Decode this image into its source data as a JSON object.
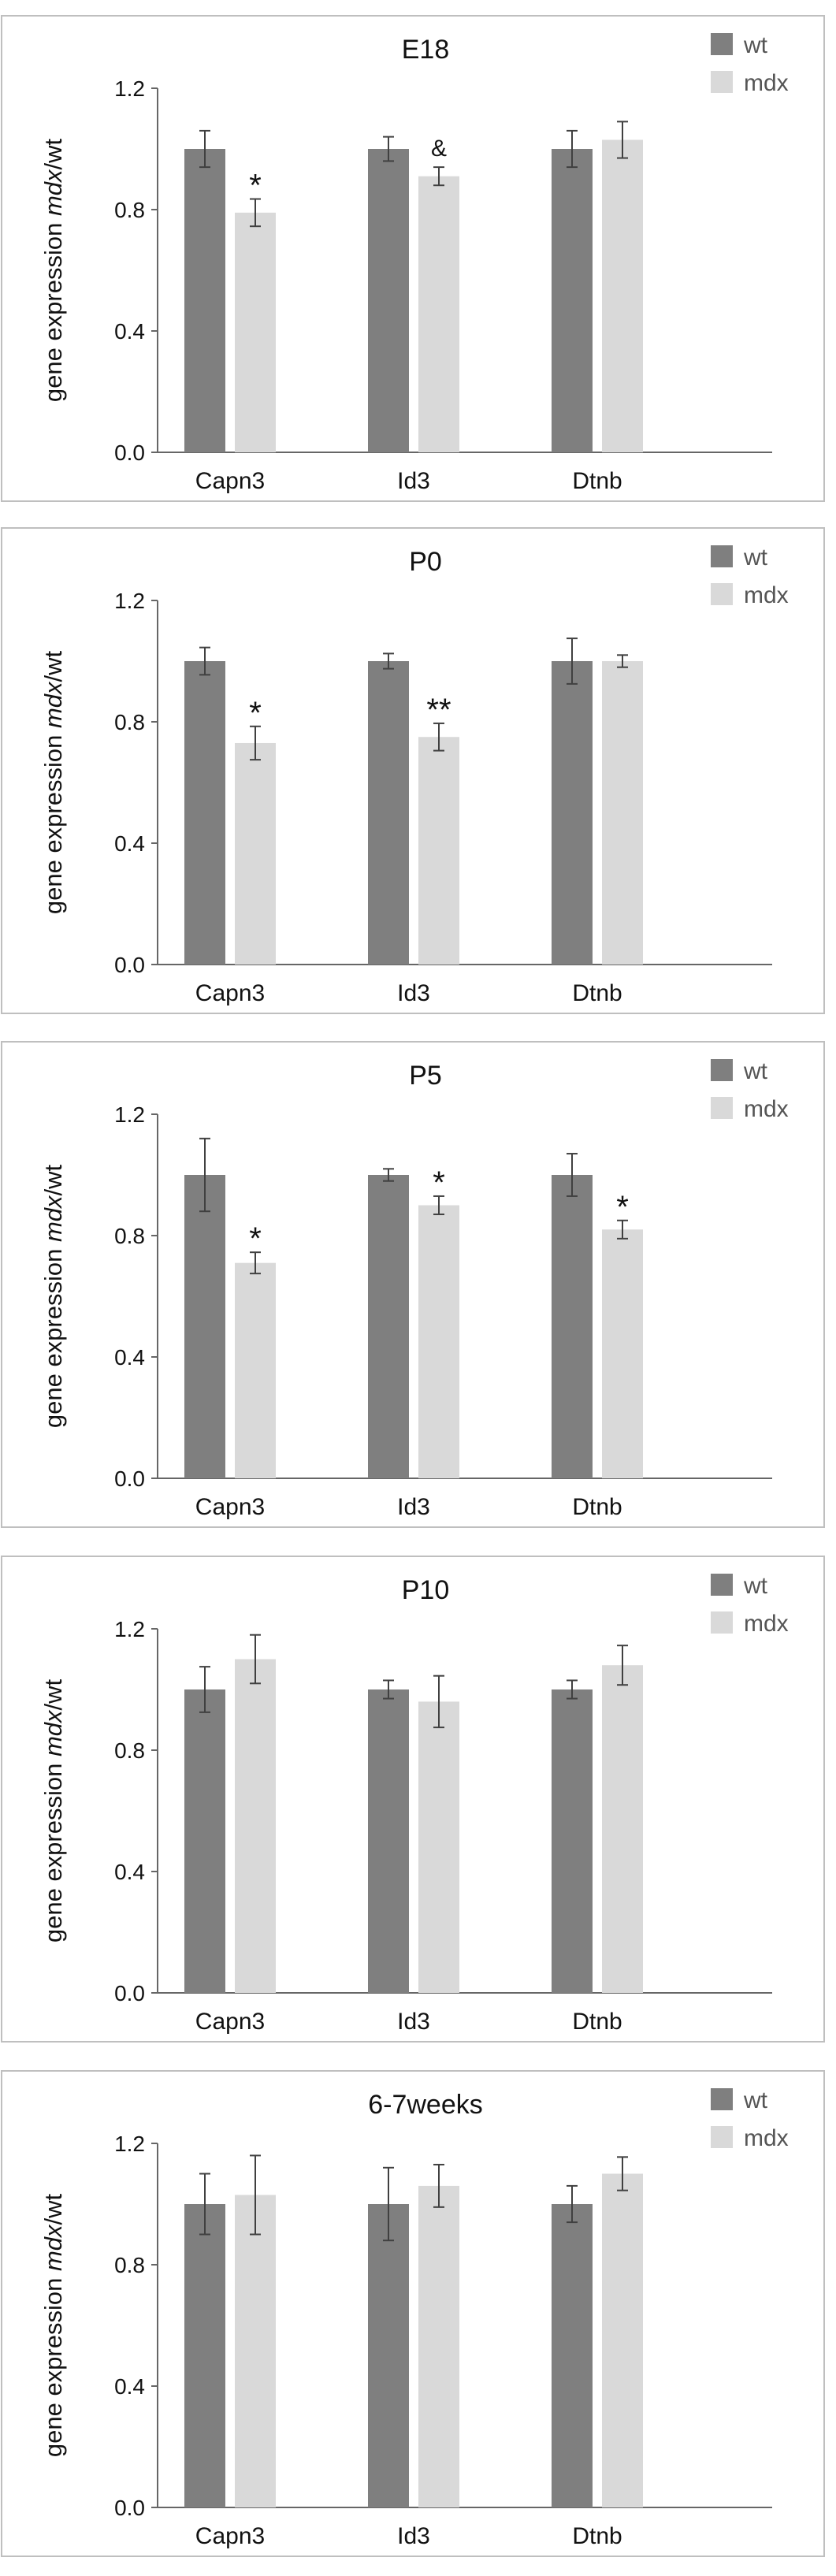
{
  "colors": {
    "wt": "#7f7f7f",
    "mdx": "#d9d9d9",
    "frame": "#bfbfbf",
    "axis": "#666666",
    "error": "#404040"
  },
  "chart_data": [
    {
      "type": "bar",
      "title": "E18",
      "categories": [
        "Capn3",
        "Id3",
        "Dtnb"
      ],
      "ylabel_parts": [
        "gene expression ",
        "mdx",
        "/wt"
      ],
      "ylim": [
        0,
        1.2
      ],
      "yticks": [
        "0.0",
        "0.4",
        "0.8",
        "1.2"
      ],
      "legend": {
        "position": "top-right",
        "entries": [
          "wt",
          "mdx"
        ]
      },
      "series": [
        {
          "name": "wt",
          "values": [
            1.0,
            1.0,
            1.0
          ],
          "errors": [
            0.06,
            0.04,
            0.06
          ]
        },
        {
          "name": "mdx",
          "values": [
            0.79,
            0.91,
            1.03
          ],
          "errors": [
            0.045,
            0.03,
            0.06
          ]
        }
      ],
      "annotations": [
        "*",
        "&",
        ""
      ]
    },
    {
      "type": "bar",
      "title": "P0",
      "categories": [
        "Capn3",
        "Id3",
        "Dtnb"
      ],
      "ylabel_parts": [
        "gene expression ",
        "mdx",
        "/wt"
      ],
      "ylim": [
        0,
        1.2
      ],
      "yticks": [
        "0.0",
        "0.4",
        "0.8",
        "1.2"
      ],
      "legend": {
        "position": "top-right",
        "entries": [
          "wt",
          "mdx"
        ]
      },
      "series": [
        {
          "name": "wt",
          "values": [
            1.0,
            1.0,
            1.0
          ],
          "errors": [
            0.045,
            0.025,
            0.075
          ]
        },
        {
          "name": "mdx",
          "values": [
            0.73,
            0.75,
            1.0
          ],
          "errors": [
            0.055,
            0.045,
            0.02
          ]
        }
      ],
      "annotations": [
        "*",
        "**",
        ""
      ]
    },
    {
      "type": "bar",
      "title": "P5",
      "categories": [
        "Capn3",
        "Id3",
        "Dtnb"
      ],
      "ylabel_parts": [
        "gene expression ",
        "mdx",
        "/wt"
      ],
      "ylim": [
        0,
        1.2
      ],
      "yticks": [
        "0.0",
        "0.4",
        "0.8",
        "1.2"
      ],
      "legend": {
        "position": "top-right",
        "entries": [
          "wt",
          "mdx"
        ]
      },
      "series": [
        {
          "name": "wt",
          "values": [
            1.0,
            1.0,
            1.0
          ],
          "errors": [
            0.12,
            0.02,
            0.07
          ]
        },
        {
          "name": "mdx",
          "values": [
            0.71,
            0.9,
            0.82
          ],
          "errors": [
            0.035,
            0.03,
            0.03
          ]
        }
      ],
      "annotations": [
        "*",
        "*",
        "*"
      ]
    },
    {
      "type": "bar",
      "title": "P10",
      "categories": [
        "Capn3",
        "Id3",
        "Dtnb"
      ],
      "ylabel_parts": [
        "gene expression ",
        "mdx",
        "/wt"
      ],
      "ylim": [
        0,
        1.2
      ],
      "yticks": [
        "0.0",
        "0.4",
        "0.8",
        "1.2"
      ],
      "legend": {
        "position": "top-right",
        "entries": [
          "wt",
          "mdx"
        ]
      },
      "series": [
        {
          "name": "wt",
          "values": [
            1.0,
            1.0,
            1.0
          ],
          "errors": [
            0.075,
            0.03,
            0.03
          ]
        },
        {
          "name": "mdx",
          "values": [
            1.1,
            0.96,
            1.08
          ],
          "errors": [
            0.08,
            0.085,
            0.065
          ]
        }
      ],
      "annotations": [
        "",
        "",
        ""
      ]
    },
    {
      "type": "bar",
      "title": "6-7weeks",
      "categories": [
        "Capn3",
        "Id3",
        "Dtnb"
      ],
      "ylabel_parts": [
        "gene expression ",
        "mdx",
        "/wt"
      ],
      "ylim": [
        0,
        1.2
      ],
      "yticks": [
        "0.0",
        "0.4",
        "0.8",
        "1.2"
      ],
      "legend": {
        "position": "top-right",
        "entries": [
          "wt",
          "mdx"
        ]
      },
      "series": [
        {
          "name": "wt",
          "values": [
            1.0,
            1.0,
            1.0
          ],
          "errors": [
            0.1,
            0.12,
            0.06
          ]
        },
        {
          "name": "mdx",
          "values": [
            1.03,
            1.06,
            1.1
          ],
          "errors": [
            0.13,
            0.07,
            0.055
          ]
        }
      ],
      "annotations": [
        "",
        "",
        ""
      ]
    }
  ]
}
